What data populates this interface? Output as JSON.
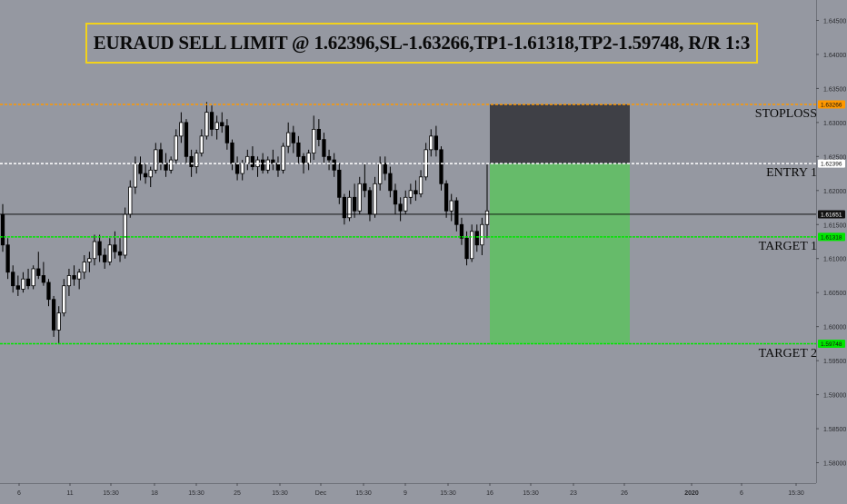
{
  "chart_data": {
    "type": "candlestick",
    "title": "EURAUD SELL LIMIT @ 1.62396,SL-1.63266,TP1-1.61318,TP2-1.59748, R/R 1:3",
    "ylim": [
      1.577,
      1.648
    ],
    "y_ticks": [
      "1.64500",
      "1.64000",
      "1.63500",
      "1.63000",
      "1.62500",
      "1.62000",
      "1.61500",
      "1.61000",
      "1.60500",
      "1.60000",
      "1.59500",
      "1.59000",
      "1.58500",
      "1.58000"
    ],
    "x_ticks": [
      "6",
      "11",
      "15:30",
      "18",
      "15:30",
      "25",
      "15:30",
      "Dec",
      "15:30",
      "9",
      "15:30",
      "16",
      "15:30",
      "23",
      "26",
      "2020",
      "6",
      "15:30"
    ],
    "levels": [
      {
        "name": "STOPLOSS",
        "value": 1.63266,
        "label": "STOPLOSS",
        "badge": "1.63266",
        "color": "#ff9800"
      },
      {
        "name": "ENTRY 1",
        "value": 1.62396,
        "label": "ENTRY 1",
        "badge": "1.62396",
        "color": "#ffffff"
      },
      {
        "name": "current",
        "value": 1.61651,
        "label": "",
        "badge": "1.61651",
        "color": "#000000"
      },
      {
        "name": "TARGET 1",
        "value": 1.61318,
        "label": "TARGET 1",
        "badge": "1.61318",
        "color": "#00e600"
      },
      {
        "name": "TARGET 2",
        "value": 1.59748,
        "label": "TARGET 2",
        "badge": "1.59748",
        "color": "#00e600"
      }
    ],
    "position": {
      "entry": 1.62396,
      "stop": 1.63266,
      "target": 1.59748,
      "risk_color": "#3f4046",
      "reward_color": "#66bb6a"
    },
    "candles": [
      [
        1.6165,
        1.618,
        1.611,
        1.612
      ],
      [
        1.612,
        1.613,
        1.607,
        1.608
      ],
      [
        1.608,
        1.609,
        1.605,
        1.606
      ],
      [
        1.606,
        1.6075,
        1.6045,
        1.6055
      ],
      [
        1.6055,
        1.608,
        1.605,
        1.607
      ],
      [
        1.607,
        1.6085,
        1.6055,
        1.606
      ],
      [
        1.606,
        1.609,
        1.6055,
        1.6085
      ],
      [
        1.6085,
        1.611,
        1.607,
        1.6075
      ],
      [
        1.6075,
        1.6095,
        1.606,
        1.6065
      ],
      [
        1.6065,
        1.607,
        1.603,
        1.604
      ],
      [
        1.604,
        1.6045,
        1.5985,
        1.5995
      ],
      [
        1.5995,
        1.603,
        1.5975,
        1.602
      ],
      [
        1.602,
        1.607,
        1.6015,
        1.606
      ],
      [
        1.606,
        1.6085,
        1.6045,
        1.6075
      ],
      [
        1.6075,
        1.609,
        1.606,
        1.607
      ],
      [
        1.607,
        1.6085,
        1.6055,
        1.608
      ],
      [
        1.608,
        1.6105,
        1.607,
        1.6095
      ],
      [
        1.6095,
        1.611,
        1.608,
        1.61
      ],
      [
        1.61,
        1.6135,
        1.609,
        1.6125
      ],
      [
        1.6125,
        1.6135,
        1.6095,
        1.6105
      ],
      [
        1.6105,
        1.6115,
        1.6085,
        1.6095
      ],
      [
        1.6095,
        1.613,
        1.609,
        1.612
      ],
      [
        1.612,
        1.614,
        1.61,
        1.611
      ],
      [
        1.611,
        1.613,
        1.6095,
        1.6105
      ],
      [
        1.6105,
        1.6175,
        1.61,
        1.6165
      ],
      [
        1.6165,
        1.6215,
        1.616,
        1.6205
      ],
      [
        1.6205,
        1.625,
        1.6195,
        1.624
      ],
      [
        1.624,
        1.625,
        1.6215,
        1.6225
      ],
      [
        1.6225,
        1.624,
        1.621,
        1.622
      ],
      [
        1.622,
        1.6235,
        1.6205,
        1.623
      ],
      [
        1.623,
        1.627,
        1.6225,
        1.626
      ],
      [
        1.626,
        1.627,
        1.623,
        1.624
      ],
      [
        1.624,
        1.6255,
        1.622,
        1.623
      ],
      [
        1.623,
        1.625,
        1.6225,
        1.6245
      ],
      [
        1.6245,
        1.629,
        1.624,
        1.628
      ],
      [
        1.628,
        1.6315,
        1.627,
        1.63
      ],
      [
        1.63,
        1.6305,
        1.624,
        1.625
      ],
      [
        1.625,
        1.626,
        1.622,
        1.6235
      ],
      [
        1.6235,
        1.626,
        1.6225,
        1.6255
      ],
      [
        1.6255,
        1.629,
        1.625,
        1.628
      ],
      [
        1.628,
        1.633,
        1.6275,
        1.6315
      ],
      [
        1.6315,
        1.6325,
        1.628,
        1.629
      ],
      [
        1.629,
        1.631,
        1.6275,
        1.63
      ],
      [
        1.63,
        1.6315,
        1.6285,
        1.6295
      ],
      [
        1.6295,
        1.6305,
        1.626,
        1.627
      ],
      [
        1.627,
        1.6275,
        1.623,
        1.624
      ],
      [
        1.624,
        1.625,
        1.6215,
        1.6225
      ],
      [
        1.6225,
        1.6245,
        1.6215,
        1.624
      ],
      [
        1.624,
        1.626,
        1.623,
        1.625
      ],
      [
        1.625,
        1.6265,
        1.623,
        1.6235
      ],
      [
        1.6235,
        1.625,
        1.622,
        1.6245
      ],
      [
        1.6245,
        1.6255,
        1.6225,
        1.623
      ],
      [
        1.623,
        1.625,
        1.6225,
        1.6245
      ],
      [
        1.6245,
        1.626,
        1.623,
        1.624
      ],
      [
        1.624,
        1.625,
        1.622,
        1.623
      ],
      [
        1.623,
        1.627,
        1.6225,
        1.6265
      ],
      [
        1.6265,
        1.63,
        1.6255,
        1.6285
      ],
      [
        1.6285,
        1.6295,
        1.6255,
        1.627
      ],
      [
        1.627,
        1.628,
        1.624,
        1.625
      ],
      [
        1.625,
        1.6255,
        1.6225,
        1.624
      ],
      [
        1.624,
        1.626,
        1.623,
        1.6255
      ],
      [
        1.6255,
        1.631,
        1.6245,
        1.629
      ],
      [
        1.629,
        1.6305,
        1.6265,
        1.6275
      ],
      [
        1.6275,
        1.6285,
        1.624,
        1.625
      ],
      [
        1.625,
        1.626,
        1.623,
        1.6245
      ],
      [
        1.6245,
        1.6255,
        1.622,
        1.623
      ],
      [
        1.623,
        1.624,
        1.618,
        1.619
      ],
      [
        1.619,
        1.6195,
        1.615,
        1.616
      ],
      [
        1.616,
        1.62,
        1.6155,
        1.619
      ],
      [
        1.619,
        1.621,
        1.616,
        1.617
      ],
      [
        1.617,
        1.622,
        1.6165,
        1.621
      ],
      [
        1.621,
        1.624,
        1.619,
        1.62
      ],
      [
        1.62,
        1.6205,
        1.6155,
        1.6165
      ],
      [
        1.6165,
        1.622,
        1.616,
        1.621
      ],
      [
        1.621,
        1.625,
        1.62,
        1.624
      ],
      [
        1.624,
        1.625,
        1.6215,
        1.6225
      ],
      [
        1.6225,
        1.6235,
        1.619,
        1.62
      ],
      [
        1.62,
        1.621,
        1.6165,
        1.618
      ],
      [
        1.618,
        1.619,
        1.6155,
        1.617
      ],
      [
        1.617,
        1.62,
        1.6165,
        1.619
      ],
      [
        1.619,
        1.621,
        1.618,
        1.62
      ],
      [
        1.62,
        1.6215,
        1.6185,
        1.6195
      ],
      [
        1.6195,
        1.623,
        1.619,
        1.622
      ],
      [
        1.622,
        1.627,
        1.6215,
        1.626
      ],
      [
        1.626,
        1.629,
        1.625,
        1.628
      ],
      [
        1.628,
        1.6295,
        1.625,
        1.626
      ],
      [
        1.626,
        1.6265,
        1.62,
        1.621
      ],
      [
        1.621,
        1.6215,
        1.616,
        1.617
      ],
      [
        1.617,
        1.6195,
        1.6155,
        1.6185
      ],
      [
        1.6185,
        1.619,
        1.614,
        1.615
      ],
      [
        1.615,
        1.616,
        1.612,
        1.613
      ],
      [
        1.613,
        1.614,
        1.609,
        1.61
      ],
      [
        1.61,
        1.615,
        1.6095,
        1.614
      ],
      [
        1.614,
        1.615,
        1.611,
        1.612
      ],
      [
        1.612,
        1.616,
        1.6105,
        1.615
      ],
      [
        1.615,
        1.624,
        1.613,
        1.617
      ]
    ]
  }
}
